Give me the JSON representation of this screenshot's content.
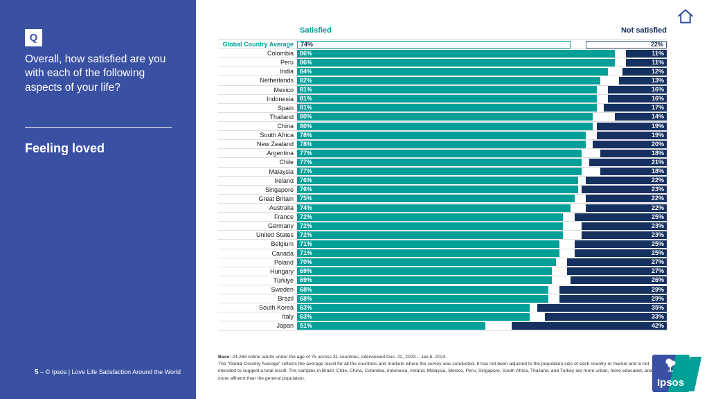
{
  "colors": {
    "sidebar": "#3A51A3",
    "satisfied": "#00A099",
    "not_satisfied": "#16305F",
    "average_text": "#13264d"
  },
  "sidebar": {
    "q_badge": "Q",
    "question": "Overall, how satisfied are you with each of the following aspects of your life?",
    "topic": "Feeling loved",
    "page_number": "5",
    "footer_rest": " – © Ipsos | Love Life Satisfaction Around the World"
  },
  "header": {
    "satisfied": "Satisfied",
    "not_satisfied": "Not satisfied"
  },
  "chart_data": {
    "type": "bar",
    "orientation": "horizontal",
    "stacked": true,
    "title": "Feeling loved",
    "unit": "%",
    "xlim": [
      0,
      100
    ],
    "legend": [
      "Satisfied",
      "Not satisfied"
    ],
    "average": {
      "label": "Global Country Average",
      "satisfied": 74,
      "not_satisfied": 22
    },
    "categories": [
      "Colombia",
      "Peru",
      "India",
      "Netherlands",
      "Mexico",
      "Indonesia",
      "Spain",
      "Thailand",
      "China",
      "South Africa",
      "New Zealand",
      "Argentina",
      "Chile",
      "Malaysia",
      "Ireland",
      "Singapore",
      "Great Britain",
      "Australia",
      "France",
      "Germany",
      "United States",
      "Belgium",
      "Canada",
      "Poland",
      "Hungary",
      "Türkiye",
      "Sweden",
      "Brazil",
      "South Korea",
      "Italy",
      "Japan"
    ],
    "series": [
      {
        "name": "Satisfied",
        "values": [
          86,
          86,
          84,
          82,
          81,
          81,
          81,
          80,
          80,
          78,
          78,
          77,
          77,
          77,
          76,
          76,
          75,
          74,
          72,
          72,
          72,
          71,
          71,
          70,
          69,
          69,
          68,
          68,
          63,
          63,
          51
        ]
      },
      {
        "name": "Not satisfied",
        "values": [
          11,
          11,
          12,
          13,
          16,
          16,
          17,
          14,
          19,
          19,
          20,
          18,
          21,
          18,
          22,
          23,
          22,
          22,
          25,
          23,
          23,
          25,
          25,
          27,
          27,
          26,
          29,
          29,
          35,
          33,
          42
        ]
      }
    ]
  },
  "footnote": {
    "base_label": "Base:",
    "base_text": " 24,269 online adults under the age of 75 across 31 countries, interviewed Dec. 22, 2023 – Jan.5, 2024",
    "body": "The “Global Country Average” reflects the average result for all the countries and markets where the survey was conducted. It has not been adjusted to the population size of each country or market and is not intended to suggest a total result.   The samples in Brazil, Chile, China, Colombia, Indonesia, Ireland, Malaysia, Mexico, Peru, Singapore, South Africa, Thailand, and Turkey are more urban, more educated, and/or more affluent than the general population."
  },
  "logo": {
    "text": "Ipsos"
  }
}
